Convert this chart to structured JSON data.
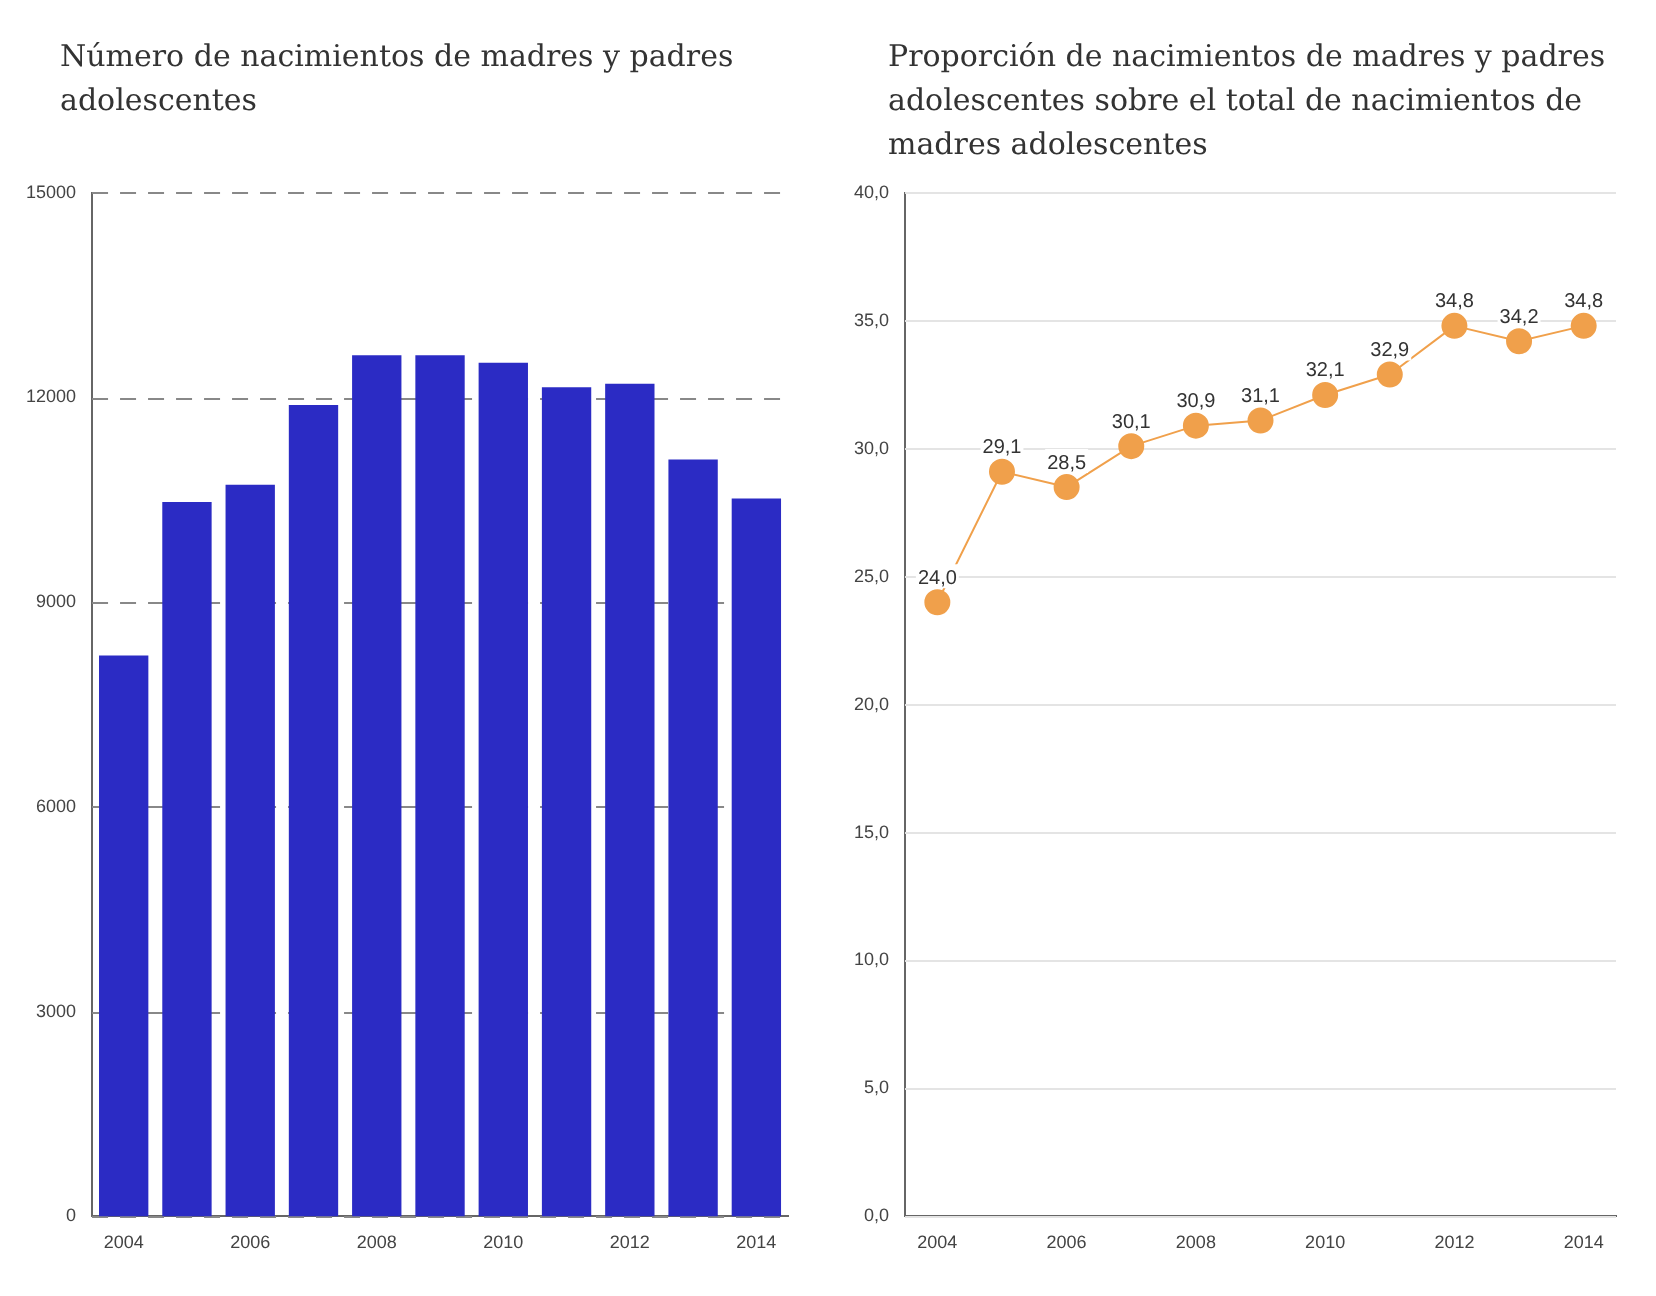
{
  "chart_data": [
    {
      "type": "bar",
      "title": "Número de nacimientos de madres y padres adolescentes",
      "categories": [
        "2004",
        null,
        "2006",
        null,
        "2008",
        null,
        "2010",
        null,
        "2012",
        null,
        "2014"
      ],
      "series": [
        {
          "color": "#2b2bc4",
          "values": [
            8220,
            10470,
            10720,
            11890,
            12620,
            12620,
            12510,
            12150,
            12200,
            11090,
            10520
          ]
        }
      ],
      "ylim": [
        0,
        15000
      ],
      "yticks": [
        0,
        3000,
        6000,
        9000,
        12000,
        15000
      ],
      "grid": "y",
      "legend": false
    },
    {
      "type": "line",
      "title": "Proporción de  nacimientos de madres y padres adolescentes sobre el total de nacimientos de madres adolescentes",
      "categories": [
        "2004",
        null,
        "2006",
        null,
        "2008",
        null,
        "2010",
        null,
        "2012",
        null,
        "2014"
      ],
      "series": [
        {
          "color": "#f0a04b",
          "values": [
            24.0,
            29.1,
            28.5,
            30.1,
            30.9,
            31.1,
            32.1,
            32.9,
            34.8,
            34.2,
            34.8
          ],
          "value_labels": [
            "24,0",
            "29,1",
            "28,5",
            "30,1",
            "30,9",
            "31,1",
            "32,1",
            "32,9",
            "34,8",
            "34,2",
            "34,8"
          ]
        }
      ],
      "ylim": [
        0,
        40
      ],
      "yticks": [
        {
          "value": 0,
          "label": "0,0"
        },
        {
          "value": 5,
          "label": "5,0"
        },
        {
          "value": 10,
          "label": "10,0"
        },
        {
          "value": 15,
          "label": "15,0"
        },
        {
          "value": 20,
          "label": "20,0"
        },
        {
          "value": 25,
          "label": "25,0"
        },
        {
          "value": 30,
          "label": "30,0"
        },
        {
          "value": 35,
          "label": "35,0"
        },
        {
          "value": 40,
          "label": "40,0"
        }
      ],
      "grid": "y",
      "legend": false,
      "marker": "circle",
      "line_style": "solid"
    }
  ]
}
